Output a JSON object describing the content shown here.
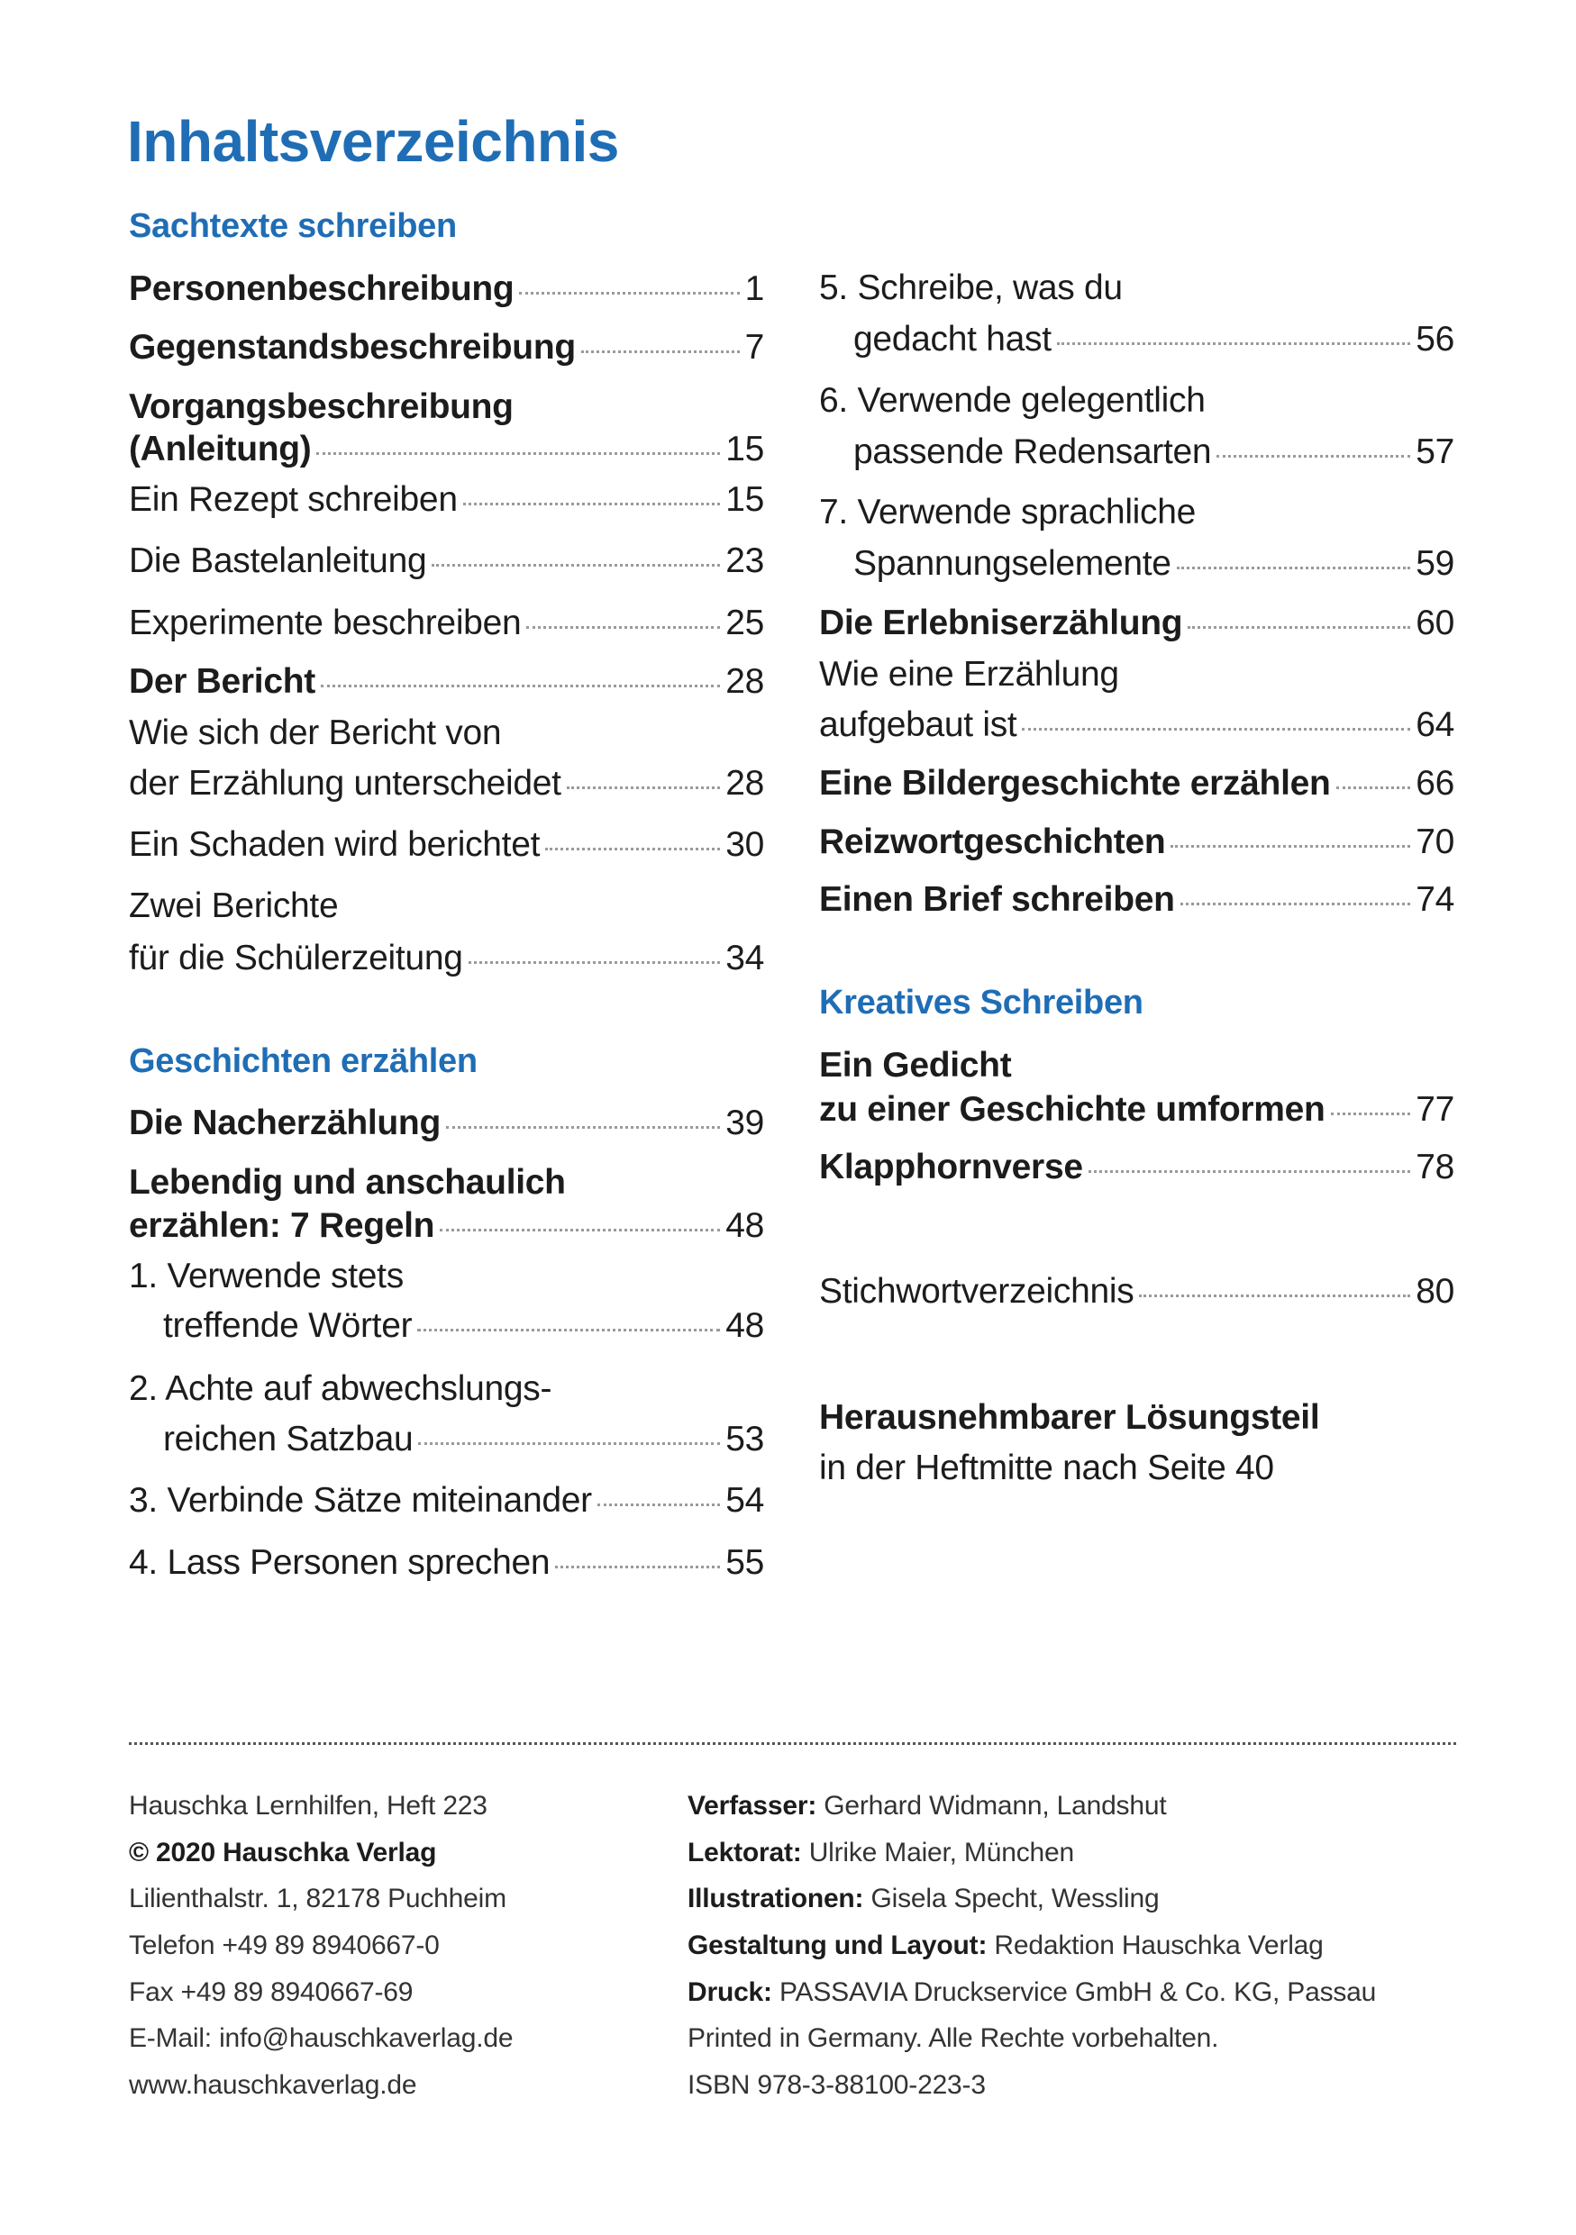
{
  "title": "Inhaltsverzeichnis",
  "colors": {
    "accent": "#1f6db5",
    "text": "#1c1c1c"
  },
  "left_column": [
    {
      "type": "section",
      "label": "Sachtexte schreiben"
    },
    {
      "type": "entry",
      "bold": true,
      "lines": [
        "Personenbeschreibung"
      ],
      "page": "1"
    },
    {
      "type": "entry",
      "bold": true,
      "lines": [
        "Gegenstandsbeschreibung"
      ],
      "page": "7"
    },
    {
      "type": "entry",
      "bold": true,
      "lines": [
        "Vorgangsbeschreibung",
        "(Anleitung)"
      ],
      "page": "15"
    },
    {
      "type": "entry",
      "bold": false,
      "lines": [
        "Ein Rezept schreiben"
      ],
      "page": "15"
    },
    {
      "type": "entry",
      "bold": false,
      "lines": [
        "Die Bastelanleitung"
      ],
      "page": "23"
    },
    {
      "type": "entry",
      "bold": false,
      "lines": [
        "Experimente beschreiben"
      ],
      "page": "25"
    },
    {
      "type": "entry",
      "bold": true,
      "lines": [
        "Der Bericht"
      ],
      "page": "28"
    },
    {
      "type": "entry",
      "bold": false,
      "lines": [
        "Wie sich der Bericht von",
        "der Erzählung unterscheidet"
      ],
      "page": "28"
    },
    {
      "type": "entry",
      "bold": false,
      "lines": [
        "Ein Schaden wird berichtet"
      ],
      "page": "30"
    },
    {
      "type": "entry",
      "bold": false,
      "lines": [
        "Zwei Berichte",
        "für die Schülerzeitung"
      ],
      "page": "34"
    },
    {
      "type": "section",
      "label": "Geschichten erzählen"
    },
    {
      "type": "entry",
      "bold": true,
      "lines": [
        "Die Nacherzählung"
      ],
      "page": "39"
    },
    {
      "type": "entry",
      "bold": true,
      "lines": [
        "Lebendig und anschaulich",
        "erzählen: 7 Regeln"
      ],
      "page": "48"
    },
    {
      "type": "entry",
      "bold": false,
      "indent": true,
      "lines": [
        "1. Verwende stets",
        "treffende Wörter"
      ],
      "page": "48"
    },
    {
      "type": "entry",
      "bold": false,
      "indent": true,
      "lines": [
        "2. Achte auf abwechslungs-",
        "reichen Satzbau"
      ],
      "page": "53"
    },
    {
      "type": "entry",
      "bold": false,
      "lines": [
        "3. Verbinde Sätze miteinander"
      ],
      "page": "54"
    },
    {
      "type": "entry",
      "bold": false,
      "lines": [
        "4. Lass Personen sprechen"
      ],
      "page": "55"
    }
  ],
  "right_column": [
    {
      "type": "entry",
      "bold": false,
      "indent": true,
      "lines": [
        "5. Schreibe, was du",
        "gedacht hast"
      ],
      "page": "56"
    },
    {
      "type": "entry",
      "bold": false,
      "indent": true,
      "lines": [
        "6. Verwende gelegentlich",
        "passende Redensarten"
      ],
      "page": "57"
    },
    {
      "type": "entry",
      "bold": false,
      "indent": true,
      "lines": [
        "7. Verwende sprachliche",
        "Spannungselemente"
      ],
      "page": "59"
    },
    {
      "type": "entry",
      "bold": true,
      "lines": [
        "Die Erlebniserzählung"
      ],
      "page": "60"
    },
    {
      "type": "entry",
      "bold": false,
      "lines": [
        "Wie eine Erzählung",
        "aufgebaut ist"
      ],
      "page": "64"
    },
    {
      "type": "entry",
      "bold": true,
      "lines": [
        "Eine Bildergeschichte erzählen"
      ],
      "page": "66"
    },
    {
      "type": "entry",
      "bold": true,
      "lines": [
        "Reizwortgeschichten"
      ],
      "page": "70"
    },
    {
      "type": "entry",
      "bold": true,
      "lines": [
        "Einen Brief schreiben"
      ],
      "page": "74"
    },
    {
      "type": "section",
      "label": "Kreatives Schreiben"
    },
    {
      "type": "entry",
      "bold": true,
      "lines": [
        "Ein Gedicht",
        "zu einer Geschichte umformen"
      ],
      "page": "77"
    },
    {
      "type": "entry",
      "bold": true,
      "lines": [
        "Klapphornverse"
      ],
      "page": "78"
    },
    {
      "type": "entry",
      "bold": false,
      "lines": [
        "Stichwortverzeichnis"
      ],
      "page": "80"
    },
    {
      "type": "note",
      "lines": [
        "Herausnehmbarer Lösungsteil",
        "in der Heftmitte nach Seite 40"
      ]
    }
  ],
  "imprint_left": [
    {
      "bold": "",
      "text": "Hauschka Lernhilfen, Heft 223"
    },
    {
      "bold": "© 2020 Hauschka Verlag",
      "text": ""
    },
    {
      "bold": "",
      "text": "Lilienthalstr. 1, 82178 Puchheim"
    },
    {
      "bold": "",
      "text": "Telefon +49 89 8940667-0"
    },
    {
      "bold": "",
      "text": "Fax +49 89 8940667-69"
    },
    {
      "bold": "",
      "text": "E-Mail: info@hauschkaverlag.de"
    },
    {
      "bold": "",
      "text": "www.hauschkaverlag.de"
    }
  ],
  "imprint_right": [
    {
      "bold": "Verfasser:",
      "text": " Gerhard Widmann, Landshut"
    },
    {
      "bold": "Lektorat:",
      "text": " Ulrike Maier, München"
    },
    {
      "bold": "Illustrationen:",
      "text": " Gisela Specht, Wessling"
    },
    {
      "bold": "Gestaltung und Layout:",
      "text": " Redaktion Hauschka Verlag"
    },
    {
      "bold": "Druck:",
      "text": " PASSAVIA Druckservice GmbH & Co. KG, Passau"
    },
    {
      "bold": "",
      "text": "Printed in Germany. Alle Rechte vorbehalten."
    },
    {
      "bold": "",
      "text": "ISBN 978-3-88100-223-3"
    }
  ]
}
